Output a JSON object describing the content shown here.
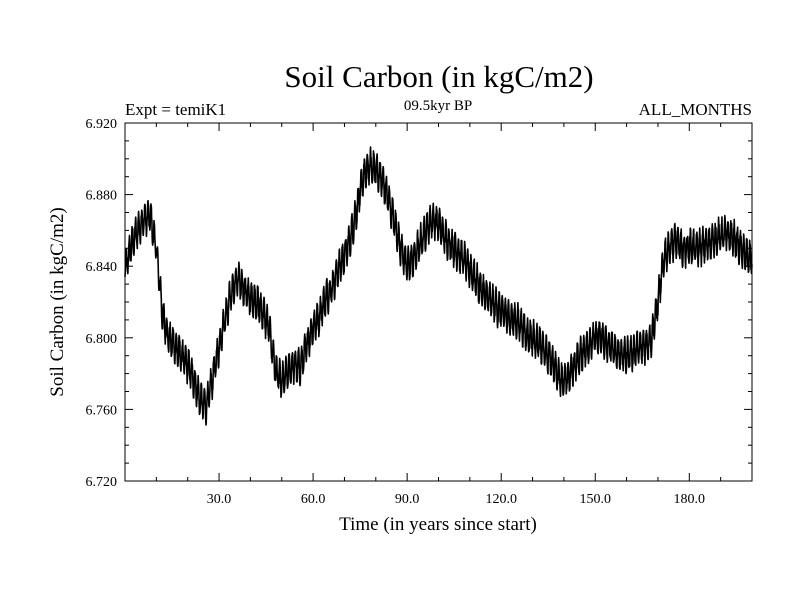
{
  "chart_data": {
    "type": "line",
    "title": "Soil Carbon (in kgC/m2)",
    "subtitle_left": "Expt = temiK1",
    "subtitle_center": "09.5kyr BP",
    "subtitle_right": "ALL_MONTHS",
    "xlabel": "Time (in years since start)",
    "ylabel": "Soil Carbon (in kgC/m2)",
    "xlim": [
      0,
      200
    ],
    "ylim": [
      6.72,
      6.92
    ],
    "x_ticks": [
      30,
      60,
      90,
      120,
      150,
      180
    ],
    "x_tick_labels": [
      "30.0",
      "60.0",
      "90.0",
      "120.0",
      "150.0",
      "180.0"
    ],
    "y_ticks": [
      6.72,
      6.76,
      6.8,
      6.84,
      6.88,
      6.92
    ],
    "y_tick_labels": [
      "6.720",
      "6.760",
      "6.800",
      "6.840",
      "6.880",
      "6.920"
    ],
    "grid": false,
    "series": [
      {
        "name": "Soil Carbon",
        "color": "#000000",
        "x": [
          0,
          2,
          4,
          6,
          8,
          10,
          12,
          14,
          16,
          18,
          20,
          22,
          24,
          26,
          28,
          30,
          32,
          34,
          36,
          38,
          40,
          42,
          44,
          46,
          48,
          50,
          52,
          54,
          56,
          58,
          60,
          62,
          64,
          66,
          68,
          70,
          72,
          74,
          76,
          78,
          80,
          82,
          84,
          86,
          88,
          90,
          92,
          94,
          96,
          98,
          100,
          102,
          104,
          106,
          108,
          110,
          112,
          114,
          116,
          118,
          120,
          122,
          124,
          126,
          128,
          130,
          132,
          134,
          136,
          138,
          140,
          142,
          144,
          146,
          148,
          150,
          152,
          154,
          156,
          158,
          160,
          162,
          164,
          166,
          168,
          170,
          172,
          174,
          176,
          178,
          180,
          182,
          184,
          186,
          188,
          190,
          192,
          194,
          196,
          198,
          200
        ],
        "mean": [
          6.838,
          6.852,
          6.86,
          6.866,
          6.868,
          6.85,
          6.812,
          6.8,
          6.795,
          6.79,
          6.785,
          6.776,
          6.765,
          6.762,
          6.778,
          6.795,
          6.812,
          6.826,
          6.833,
          6.827,
          6.822,
          6.82,
          6.814,
          6.805,
          6.782,
          6.775,
          6.781,
          6.785,
          6.784,
          6.796,
          6.806,
          6.812,
          6.822,
          6.828,
          6.838,
          6.846,
          6.856,
          6.872,
          6.89,
          6.896,
          6.894,
          6.888,
          6.878,
          6.864,
          6.85,
          6.84,
          6.844,
          6.852,
          6.86,
          6.866,
          6.864,
          6.856,
          6.852,
          6.848,
          6.844,
          6.838,
          6.832,
          6.826,
          6.822,
          6.818,
          6.815,
          6.812,
          6.81,
          6.808,
          6.802,
          6.8,
          6.797,
          6.792,
          6.788,
          6.78,
          6.775,
          6.78,
          6.787,
          6.792,
          6.796,
          6.8,
          6.8,
          6.796,
          6.793,
          6.791,
          6.79,
          6.792,
          6.794,
          6.796,
          6.8,
          6.82,
          6.845,
          6.852,
          6.854,
          6.849,
          6.851,
          6.85,
          6.851,
          6.853,
          6.855,
          6.857,
          6.858,
          6.856,
          6.851,
          6.846,
          6.844
        ],
        "seasonal_amplitude": 0.01
      }
    ]
  }
}
